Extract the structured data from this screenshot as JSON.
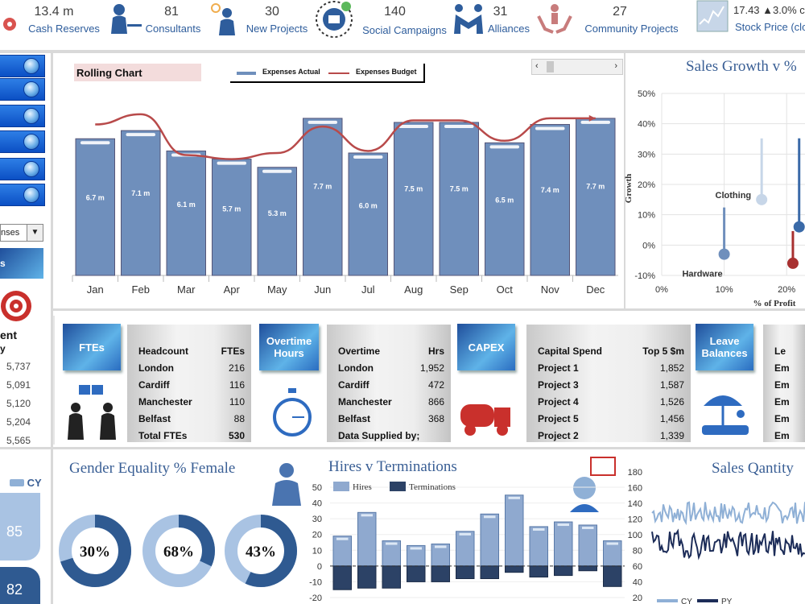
{
  "kpis": [
    {
      "value": "13.4 m",
      "label": "Cash Reserves",
      "icon": "money-bag-icon"
    },
    {
      "value": "81",
      "label": "Consultants",
      "icon": "consultant-at-laptop-icon"
    },
    {
      "value": "30",
      "label": "New Projects",
      "icon": "idea-presenter-icon"
    },
    {
      "value": "140",
      "label": "Social Campaigns",
      "icon": "social-network-icon"
    },
    {
      "value": "31",
      "label": "Alliances",
      "icon": "handshake-icon"
    },
    {
      "value": "27",
      "label": "Community Projects",
      "icon": "community-hands-icon"
    },
    {
      "value": "17.43 ▲3.0% c",
      "label": "Stock Price (clo",
      "icon": "stock-chart-icon"
    }
  ],
  "sidebar": {
    "dropdown_value": "nses",
    "table_header": "ent",
    "table_subheader": "y",
    "values": [
      "5,737",
      "5,091",
      "5,120",
      "5,204",
      "5,565"
    ]
  },
  "rolling": {
    "title": "Rolling Chart",
    "legend": [
      "Expenses Actual",
      "Expenses Budget"
    ],
    "chart_data": {
      "type": "bar",
      "categories": [
        "Jan",
        "Feb",
        "Mar",
        "Apr",
        "May",
        "Jun",
        "Jul",
        "Aug",
        "Sep",
        "Oct",
        "Nov",
        "Dec"
      ],
      "series": [
        {
          "name": "Expenses Actual",
          "values": [
            6.7,
            7.1,
            6.1,
            5.7,
            5.3,
            7.7,
            6.0,
            7.5,
            7.5,
            6.5,
            7.4,
            7.7
          ],
          "labels": [
            "6.7 m",
            "7.1 m",
            "6.1 m",
            "5.7 m",
            "5.3 m",
            "7.7 m",
            "6.0 m",
            "7.5 m",
            "7.5 m",
            "6.5 m",
            "7.4 m",
            "7.7 m"
          ]
        },
        {
          "name": "Expenses Budget",
          "values": [
            7.4,
            7.9,
            5.9,
            5.7,
            6.0,
            7.3,
            6.1,
            7.6,
            7.6,
            6.6,
            7.7,
            7.7
          ]
        }
      ],
      "ylim": [
        0,
        9
      ]
    },
    "colors": {
      "bar": "#6f8fbc",
      "line": "#b84a4a"
    }
  },
  "sales_growth": {
    "title": "Sales Growth v %",
    "chart_data": {
      "type": "scatter",
      "xlabel": "% of Profit",
      "ylabel": "Growth",
      "xlim": [
        0,
        25
      ],
      "ylim": [
        -10,
        50
      ],
      "xticks": [
        "0%",
        "10%",
        "20%"
      ],
      "yticks": [
        "50%",
        "40%",
        "30%",
        "20%",
        "10%",
        "0%",
        "-10%"
      ],
      "points": [
        {
          "label": "Clothing",
          "x": 16,
          "y": 15
        },
        {
          "label": "Hardware",
          "x": 10,
          "y": -3
        },
        {
          "label": "",
          "x": 22,
          "y": 6
        },
        {
          "label": "",
          "x": 21,
          "y": -6
        }
      ]
    }
  },
  "fte": {
    "tile": "FTEs",
    "h1": "Headcount",
    "h2": "FTEs",
    "rows": [
      [
        "London",
        "216"
      ],
      [
        "Cardiff",
        "116"
      ],
      [
        "Manchester",
        "110"
      ],
      [
        "Belfast",
        "88"
      ],
      [
        "Total FTEs",
        "530"
      ]
    ]
  },
  "overtime": {
    "tile": "Overtime Hours",
    "h1": "Overtime",
    "h2": "Hrs",
    "rows": [
      [
        "London",
        "1,952"
      ],
      [
        "Cardiff",
        "472"
      ],
      [
        "Manchester",
        "866"
      ],
      [
        "Belfast",
        "368"
      ],
      [
        "Data Supplied by;",
        ""
      ]
    ]
  },
  "capex": {
    "tile": "CAPEX",
    "h1": "Capital Spend",
    "h2": "Top 5 $m",
    "rows": [
      [
        "Project 1",
        "1,852"
      ],
      [
        "Project 3",
        "1,587"
      ],
      [
        "Project 4",
        "1,526"
      ],
      [
        "Project 5",
        "1,456"
      ],
      [
        "Project 2",
        "1,339"
      ]
    ]
  },
  "leave": {
    "tile": "Leave Balances",
    "h1": "Le",
    "rows": [
      "Em",
      "Em",
      "Em",
      "Em",
      "Em"
    ]
  },
  "cy_panel": {
    "legend": "CY",
    "top": "85",
    "bottom": "82"
  },
  "gender": {
    "title": "Gender Equality % Female",
    "values": [
      {
        "label": "30%",
        "value": 30
      },
      {
        "label": "68%",
        "value": 68
      },
      {
        "label": "43%",
        "value": 43
      }
    ]
  },
  "hires": {
    "title": "Hires v Terminations",
    "legend": [
      "Hires",
      "Terminations"
    ],
    "chart_data": {
      "type": "bar",
      "ylim": [
        -20,
        50
      ],
      "yticks": [
        "50",
        "40",
        "30",
        "20",
        "10",
        "0",
        "-10",
        "-20"
      ],
      "series": [
        {
          "name": "Hires",
          "values": [
            19,
            34,
            16,
            13,
            14,
            22,
            33,
            45,
            25,
            28,
            26,
            16
          ]
        },
        {
          "name": "Terminations",
          "values": [
            -15,
            -14,
            -14,
            -10,
            -10,
            -8,
            -8,
            -4,
            -7,
            -6,
            -3,
            -13
          ]
        }
      ]
    }
  },
  "sales_qty": {
    "title": "Sales Qantity",
    "yticks": [
      "180",
      "160",
      "140",
      "120",
      "100",
      "80",
      "60",
      "40",
      "20"
    ],
    "legend": [
      "CY",
      "PY"
    ]
  }
}
